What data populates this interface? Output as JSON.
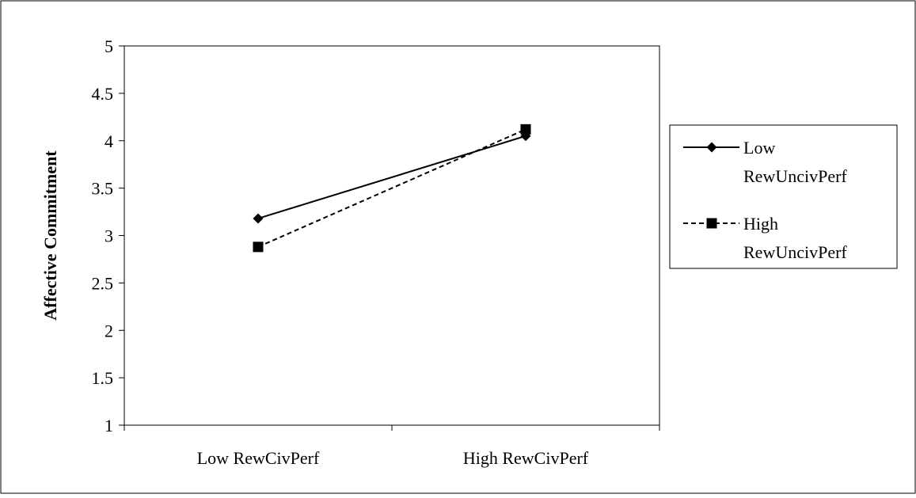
{
  "chart_data": {
    "type": "line",
    "categories": [
      "Low RewCivPerf",
      "High RewCivPerf"
    ],
    "series": [
      {
        "name": "Low RewUncivPerf",
        "values": [
          3.18,
          4.05
        ],
        "line_style": "solid",
        "marker": "diamond",
        "color": "#000000"
      },
      {
        "name": "High RewUncivPerf",
        "values": [
          2.88,
          4.12
        ],
        "line_style": "dashed",
        "marker": "square",
        "color": "#000000"
      }
    ],
    "title": "",
    "xlabel": "",
    "ylabel": "Affective Commitment",
    "ylim": [
      1,
      5
    ],
    "yticks": [
      1,
      1.5,
      2,
      2.5,
      3,
      3.5,
      4,
      4.5,
      5
    ],
    "ytick_labels": [
      "1",
      "1.5",
      "2",
      "2.5",
      "3",
      "3.5",
      "4",
      "4.5",
      "5"
    ],
    "grid": false,
    "legend": {
      "placement": "right",
      "entries": [
        {
          "lines": [
            "Low",
            "RewUncivPerf"
          ]
        },
        {
          "lines": [
            "High",
            "RewUncivPerf"
          ]
        }
      ]
    }
  }
}
